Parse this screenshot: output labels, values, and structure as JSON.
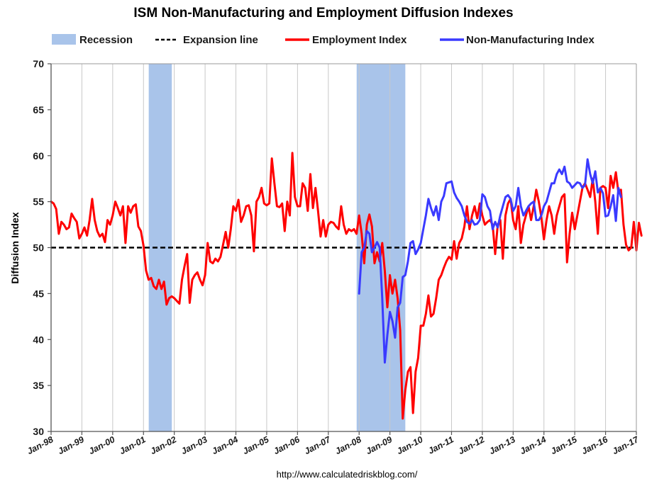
{
  "chart_data": {
    "type": "line",
    "title": "ISM Non-Manufacturing and Employment Diffusion Indexes",
    "xlabel": "",
    "ylabel": "Diffusion Index",
    "source": "http://www.calculatedriskblog.com/",
    "ylim": [
      30,
      70
    ],
    "yticks": [
      30,
      35,
      40,
      45,
      50,
      55,
      60,
      65,
      70
    ],
    "xlim": [
      1998.0,
      2017.0
    ],
    "xtick_labels": [
      "Jan-98",
      "Jan-99",
      "Jan-00",
      "Jan-01",
      "Jan-02",
      "Jan-03",
      "Jan-04",
      "Jan-05",
      "Jan-06",
      "Jan-07",
      "Jan-08",
      "Jan-09",
      "Jan-10",
      "Jan-11",
      "Jan-12",
      "Jan-13",
      "Jan-14",
      "Jan-15",
      "Jan-16",
      "Jan-17"
    ],
    "grid": "vertical",
    "legend": {
      "placement": "top",
      "entries": [
        {
          "name": "Recession",
          "kind": "band",
          "color": "#a9c4ea"
        },
        {
          "name": "Expansion line",
          "kind": "dashed",
          "color": "#000000"
        },
        {
          "name": "Employment Index",
          "kind": "line",
          "color": "#ff0000"
        },
        {
          "name": "Non-Manufacturing Index",
          "kind": "line",
          "color": "#3a3aff"
        }
      ]
    },
    "recessions": [
      {
        "start": 2001.17,
        "end": 2001.92
      },
      {
        "start": 2007.92,
        "end": 2009.5
      }
    ],
    "expansion_line": 50,
    "series": [
      {
        "name": "Employment Index",
        "color": "#ff0000",
        "x_start": 1998.0,
        "x_step": 0.0833333,
        "values": [
          55.0,
          54.8,
          54.2,
          51.5,
          52.8,
          52.5,
          52.0,
          52.2,
          53.7,
          53.2,
          52.8,
          51.0,
          51.5,
          52.2,
          51.3,
          53.0,
          55.3,
          53.0,
          51.8,
          51.2,
          51.5,
          50.6,
          53.0,
          52.5,
          53.5,
          55.0,
          54.3,
          53.5,
          54.5,
          50.5,
          54.5,
          53.8,
          54.5,
          54.7,
          52.3,
          51.8,
          50.2,
          47.5,
          46.5,
          46.7,
          45.8,
          45.5,
          46.5,
          45.5,
          46.3,
          43.8,
          44.5,
          44.7,
          44.5,
          44.2,
          43.9,
          46.5,
          48.0,
          49.3,
          44.0,
          46.5,
          47.0,
          47.3,
          46.5,
          45.9,
          47.0,
          50.5,
          48.5,
          48.3,
          48.8,
          48.5,
          49.0,
          50.3,
          51.7,
          50.0,
          52.0,
          54.5,
          54.0,
          55.2,
          52.8,
          53.5,
          54.5,
          54.6,
          53.5,
          49.6,
          55.0,
          55.5,
          56.5,
          54.8,
          54.6,
          54.8,
          59.7,
          57.0,
          54.5,
          54.4,
          54.8,
          51.8,
          55.0,
          53.5,
          60.3,
          55.5,
          54.5,
          54.5,
          57.0,
          56.5,
          54.0,
          58.0,
          54.3,
          56.5,
          54.0,
          51.2,
          53.0,
          51.2,
          52.5,
          52.8,
          52.7,
          52.3,
          52.0,
          54.5,
          52.5,
          51.5,
          52.0,
          51.8,
          52.0,
          51.5,
          53.5,
          51.5,
          48.3,
          52.5,
          53.6,
          52.3,
          48.3,
          49.5,
          48.5,
          50.5,
          47.5,
          43.5,
          47.0,
          45.0,
          46.5,
          44.5,
          41.0,
          31.4,
          34.5,
          36.5,
          37.0,
          32.0,
          36.5,
          38.0,
          41.5,
          41.5,
          42.8,
          44.8,
          42.5,
          42.8,
          44.5,
          46.5,
          47.0,
          47.8,
          48.5,
          49.0,
          48.7,
          50.7,
          48.8,
          50.5,
          51.0,
          52.3,
          54.5,
          52.0,
          53.5,
          54.5,
          53.2,
          54.8,
          53.5,
          52.5,
          52.8,
          53.0,
          52.5,
          49.3,
          52.5,
          53.0,
          48.8,
          53.5,
          54.8,
          55.3,
          53.0,
          52.0,
          54.5,
          50.5,
          52.5,
          53.5,
          54.5,
          53.0,
          54.5,
          56.3,
          55.0,
          53.3,
          50.9,
          53.0,
          54.5,
          53.5,
          51.5,
          53.5,
          54.5,
          55.5,
          55.8,
          48.4,
          51.5,
          53.8,
          52.0,
          53.5,
          55.0,
          56.5,
          57.0,
          56.3,
          55.5,
          57.5,
          55.0,
          51.5,
          56.5,
          56.7,
          56.5,
          54.3,
          57.8,
          56.5,
          58.2,
          56.0,
          56.3,
          52.5,
          50.3,
          49.7,
          50.0,
          52.8,
          49.7,
          52.7,
          51.3
        ]
      },
      {
        "name": "Non-Manufacturing Index",
        "color": "#3a3aff",
        "x_start": 2008.0,
        "x_step": 0.0833333,
        "values": [
          45.0,
          49.5,
          50.0,
          51.8,
          51.5,
          49.5,
          50.0,
          50.6,
          50.0,
          44.5,
          37.5,
          40.5,
          43.0,
          42.0,
          40.2,
          43.5,
          44.0,
          46.8,
          47.0,
          48.5,
          50.5,
          50.7,
          49.3,
          49.8,
          50.5,
          52.0,
          53.5,
          55.3,
          54.3,
          53.5,
          54.5,
          53.0,
          55.0,
          55.6,
          57.0,
          57.1,
          57.2,
          56.0,
          55.4,
          55.0,
          54.5,
          53.5,
          52.8,
          52.6,
          53.0,
          52.5,
          52.6,
          53.0,
          55.8,
          55.5,
          54.5,
          54.0,
          52.0,
          52.8,
          52.2,
          53.5,
          54.5,
          55.5,
          55.7,
          55.3,
          54.0,
          54.5,
          56.5,
          54.5,
          53.5,
          54.0,
          54.5,
          54.8,
          55.0,
          53.0,
          53.0,
          53.5,
          54.5,
          55.0,
          56.0,
          57.0,
          57.0,
          58.0,
          58.5,
          58.0,
          58.8,
          57.2,
          57.0,
          56.5,
          56.8,
          57.1,
          57.0,
          56.5,
          56.8,
          59.6,
          58.0,
          57.0,
          58.3,
          56.0,
          56.5,
          55.9,
          53.4,
          53.5,
          54.5,
          55.7,
          52.9,
          56.5,
          55.5
        ]
      }
    ]
  }
}
